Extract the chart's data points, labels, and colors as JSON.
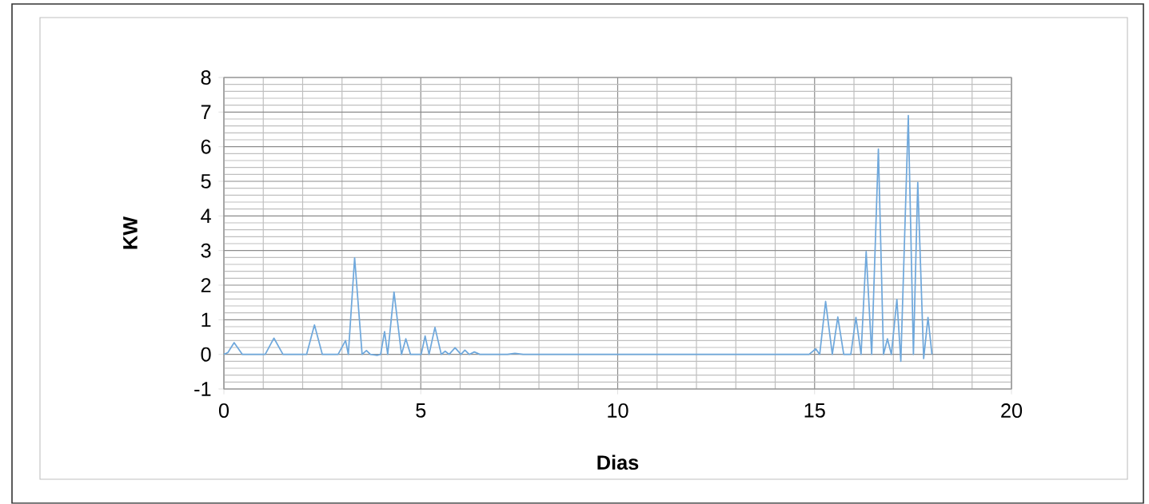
{
  "chart_data": {
    "type": "line",
    "xlabel": "Dias",
    "ylabel": "KW",
    "xlim": [
      0,
      20
    ],
    "ylim": [
      -1,
      8
    ],
    "xticks": [
      0,
      5,
      10,
      15,
      20
    ],
    "yticks": [
      -1,
      0,
      1,
      2,
      3,
      4,
      5,
      6,
      7,
      8
    ],
    "grid": true,
    "series": [
      {
        "color": "#6fa8dc",
        "x": [
          0,
          0.1,
          0.26,
          0.47,
          1.05,
          1.27,
          1.5,
          2.1,
          2.3,
          2.5,
          2.9,
          3.09,
          3.16,
          3.32,
          3.51,
          3.62,
          3.72,
          3.89,
          3.98,
          4.08,
          4.16,
          4.32,
          4.51,
          4.62,
          4.74,
          5.01,
          5.11,
          5.21,
          5.36,
          5.52,
          5.62,
          5.72,
          5.87,
          6.02,
          6.12,
          6.23,
          6.36,
          6.5,
          7.2,
          7.39,
          7.6,
          14.86,
          15.03,
          15.13,
          15.28,
          15.45,
          15.59,
          15.74,
          15.92,
          16.05,
          16.18,
          16.31,
          16.45,
          16.62,
          16.75,
          16.85,
          16.95,
          17.09,
          17.19,
          17.38,
          17.51,
          17.62,
          17.77,
          17.88,
          17.98
        ],
        "values": [
          0,
          0.05,
          0.34,
          0,
          0,
          0.47,
          0,
          0,
          0.85,
          0,
          0,
          0.4,
          0,
          2.79,
          0,
          0.11,
          0,
          -0.03,
          0,
          0.66,
          0,
          1.8,
          0,
          0.45,
          0,
          0,
          0.53,
          0,
          0.78,
          0,
          0.09,
          0,
          0.19,
          0,
          0.12,
          0,
          0.07,
          0,
          0,
          0.03,
          0,
          0,
          0.16,
          0,
          1.53,
          0,
          1.08,
          0,
          0,
          1.07,
          0,
          2.97,
          0,
          5.93,
          0,
          0.45,
          0,
          1.59,
          -0.2,
          6.9,
          0,
          4.97,
          -0.12,
          1.07,
          0
        ]
      }
    ]
  }
}
